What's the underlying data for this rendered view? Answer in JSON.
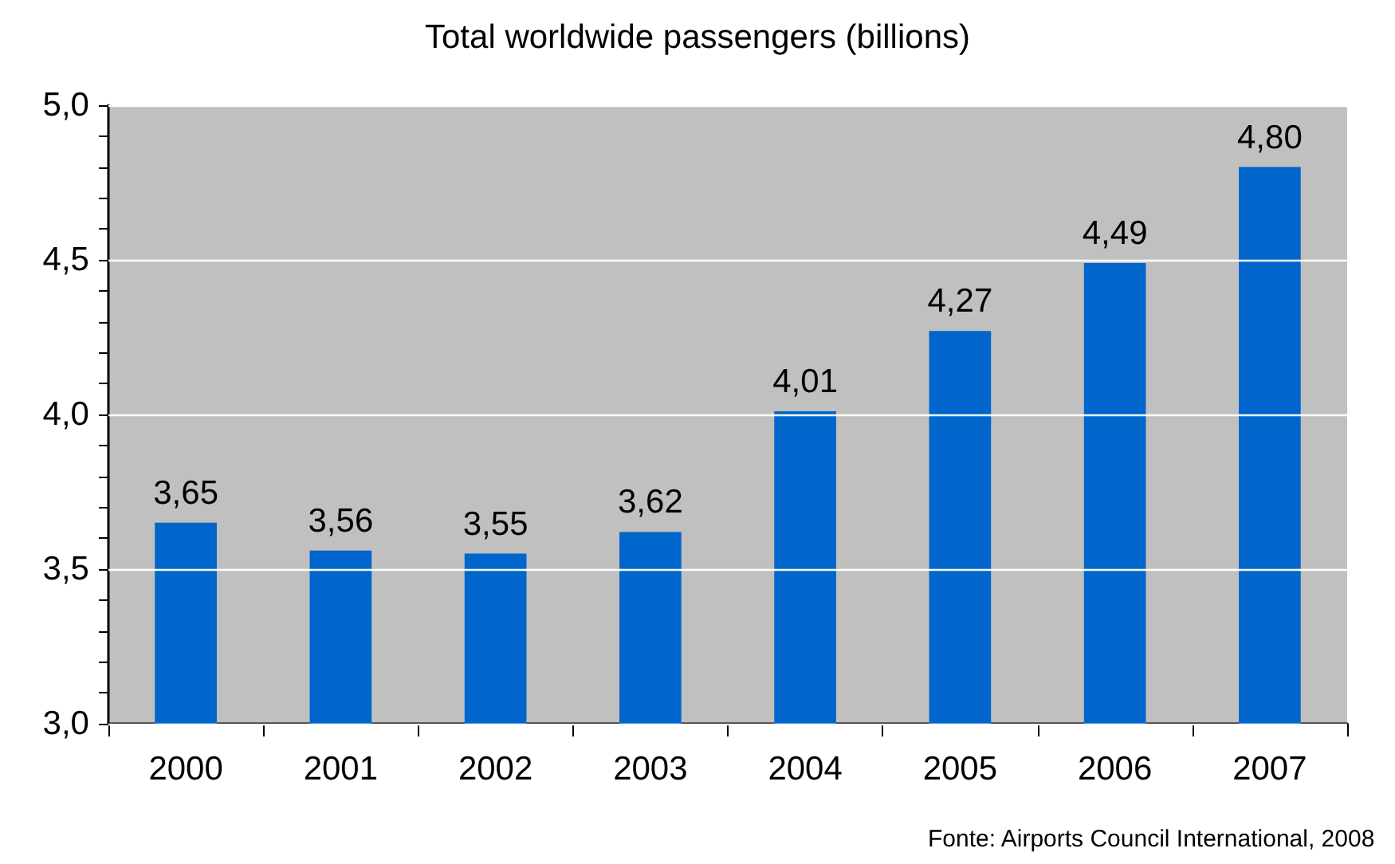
{
  "chart_data": {
    "type": "bar",
    "title": "Total worldwide passengers (billions)",
    "categories": [
      "2000",
      "2001",
      "2002",
      "2003",
      "2004",
      "2005",
      "2006",
      "2007"
    ],
    "values": [
      3.65,
      3.56,
      3.55,
      3.62,
      4.01,
      4.27,
      4.49,
      4.8
    ],
    "value_labels": [
      "3,65",
      "3,56",
      "3,55",
      "3,62",
      "4,01",
      "4,27",
      "4,49",
      "4,80"
    ],
    "color": "#0066cc",
    "ylim": [
      3,
      5
    ],
    "yticks": [
      {
        "value": 3,
        "label": "3,0"
      },
      {
        "value": 3.1,
        "label": null
      },
      {
        "value": 3.2,
        "label": null
      },
      {
        "value": 3.3,
        "label": null
      },
      {
        "value": 3.4,
        "label": null
      },
      {
        "value": 3.5,
        "label": "3,5"
      },
      {
        "value": 3.6,
        "label": null
      },
      {
        "value": 3.7,
        "label": null
      },
      {
        "value": 3.8,
        "label": null
      },
      {
        "value": 3.9,
        "label": null
      },
      {
        "value": 4,
        "label": "4,0"
      },
      {
        "value": 4.1,
        "label": null
      },
      {
        "value": 4.2,
        "label": null
      },
      {
        "value": 4.3,
        "label": null
      },
      {
        "value": 4.4,
        "label": null
      },
      {
        "value": 4.5,
        "label": "4,5"
      },
      {
        "value": 4.6,
        "label": null
      },
      {
        "value": 4.7,
        "label": null
      },
      {
        "value": 4.8,
        "label": null
      },
      {
        "value": 4.9,
        "label": null
      },
      {
        "value": 5,
        "label": "5,0"
      }
    ],
    "grid": "y",
    "annotations": [
      "Fonte: Airports Council International, 2008"
    ]
  }
}
